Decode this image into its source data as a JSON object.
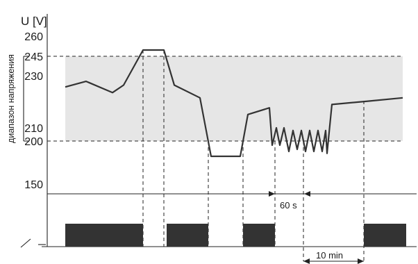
{
  "axis": {
    "unit_label": "U [V]",
    "range_label": "диапазон напряжения",
    "ticks": [
      "260",
      "245",
      "230",
      "210",
      "200",
      "150"
    ]
  },
  "intervals": {
    "delay_label": "60 s",
    "restart_label": "10 min"
  },
  "colors": {
    "band": "#e6e6e6",
    "line": "#333333",
    "relay_block": "#333333",
    "guides": "#222222"
  },
  "chart_data": {
    "type": "line",
    "title": "",
    "xlabel": "",
    "ylabel": "U [V]",
    "y_ticks": [
      260,
      245,
      230,
      210,
      200,
      150
    ],
    "threshold_high": 245,
    "threshold_low": 200,
    "series": [
      {
        "values": [
          224,
          227,
          221,
          225,
          250,
          250,
          225,
          219,
          190,
          190,
          214,
          216,
          198,
          210,
          198,
          210,
          195,
          208,
          196,
          208,
          195,
          208,
          195,
          208,
          195,
          208,
          193,
          217,
          218,
          219
        ]
      }
    ],
    "relay_states": [
      "on",
      "off",
      "on",
      "off",
      "on",
      "off",
      "on"
    ]
  }
}
